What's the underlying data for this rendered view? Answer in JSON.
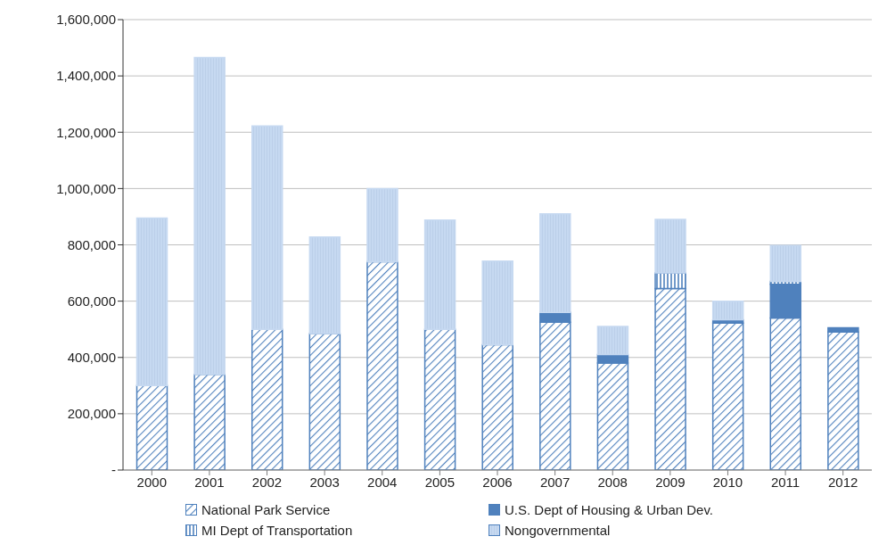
{
  "chart_data": {
    "type": "bar",
    "stacked": true,
    "categories": [
      "2000",
      "2001",
      "2002",
      "2003",
      "2004",
      "2005",
      "2006",
      "2007",
      "2008",
      "2009",
      "2010",
      "2011",
      "2012"
    ],
    "series": [
      {
        "name": "National Park Service",
        "color": "#4f81bd",
        "values": [
          300000,
          340000,
          500000,
          485000,
          740000,
          500000,
          445000,
          525000,
          380000,
          645000,
          522000,
          540000,
          490000
        ]
      },
      {
        "name": "U.S. Dept of Housing & Urban Dev.",
        "color": "#4f81bd",
        "values": [
          0,
          0,
          0,
          0,
          0,
          0,
          0,
          35000,
          30000,
          0,
          12000,
          120000,
          15000
        ]
      },
      {
        "name": "MI Dept of Transportation",
        "color": "#4f81bd",
        "values": [
          0,
          0,
          0,
          0,
          0,
          0,
          0,
          0,
          0,
          55000,
          0,
          10000,
          0
        ]
      },
      {
        "name": "Nongovernmental",
        "color": "#c6d9f1",
        "values": [
          595000,
          1125000,
          722000,
          343000,
          260000,
          388000,
          297000,
          350000,
          100000,
          190000,
          66000,
          128000,
          0
        ]
      }
    ],
    "ylim": [
      0,
      1600000
    ],
    "yticks": [
      {
        "value": 0,
        "label": "-"
      },
      {
        "value": 200000,
        "label": "200,000"
      },
      {
        "value": 400000,
        "label": "400,000"
      },
      {
        "value": 600000,
        "label": "600,000"
      },
      {
        "value": 800000,
        "label": "800,000"
      },
      {
        "value": 1000000,
        "label": "1,000,000"
      },
      {
        "value": 1200000,
        "label": "1,200,000"
      },
      {
        "value": 1400000,
        "label": "1,400,000"
      },
      {
        "value": 1600000,
        "label": "1,600,000"
      }
    ],
    "grid": "y",
    "legend": "bottom"
  }
}
